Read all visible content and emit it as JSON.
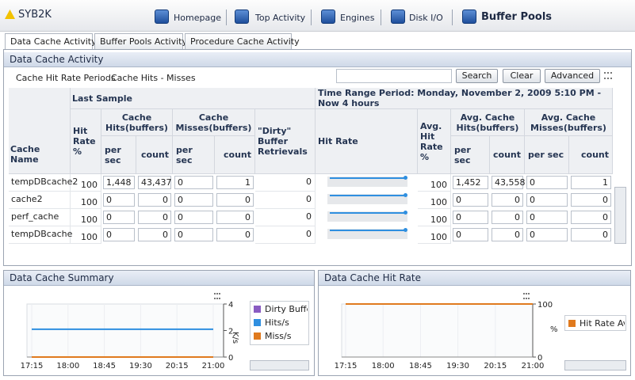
{
  "header": {
    "title": "SYB2K",
    "nav": [
      "Homepage",
      "Top Activity",
      "Engines",
      "Disk I/O",
      "Buffer Pools"
    ]
  },
  "tabs": [
    "Data Cache Activity",
    "Buffer Pools Activity",
    "Procedure Cache Activity"
  ],
  "panel": {
    "title": "Data Cache Activity",
    "links": [
      "Cache Hit Rate Periods",
      "Cache Hits - Misses"
    ],
    "buttons": [
      "Search",
      "Clear",
      "Advanced"
    ]
  },
  "table": {
    "group_headers": [
      "Last Sample",
      "Time Range Period: Monday, November 2, 2009  5:10 PM - Now  4 hours"
    ],
    "columns": [
      "Cache Name",
      "Hit Rate %",
      "Cache Hits(buffers)",
      "Cache Misses(buffers)",
      "\"Dirty\" Buffer Retrievals",
      "Hit Rate",
      "Avg. Hit Rate %",
      "Avg. Cache Hits(buffers)",
      "Avg. Cache Misses(buffers)"
    ],
    "subcolumns": [
      "per sec",
      "count"
    ],
    "rows": [
      [
        "tempDBcache2",
        "100",
        "1,448",
        "43,437",
        "0",
        "1",
        "0",
        "100",
        "1,452",
        "43,558",
        "0",
        "1"
      ],
      [
        "cache2",
        "100",
        "0",
        "0",
        "0",
        "0",
        "0",
        "100",
        "0",
        "0",
        "0",
        "0"
      ],
      [
        "perf_cache",
        "100",
        "0",
        "0",
        "0",
        "0",
        "0",
        "100",
        "0",
        "0",
        "0",
        "0"
      ],
      [
        "tempDBcache",
        "100",
        "0",
        "0",
        "0",
        "0",
        "0",
        "100",
        "0",
        "0",
        "0",
        "0"
      ]
    ]
  },
  "charts": [
    {
      "type": "line",
      "title": "Data Cache Summary",
      "y_label": "K/s",
      "x": [
        "17:15",
        "18:00",
        "18:45",
        "19:30",
        "20:15",
        "21:00"
      ],
      "ylim": [
        0,
        4
      ],
      "yticks": [
        0,
        2,
        4
      ],
      "series": [
        {
          "name": "Dirty Buffer",
          "color": "#8a5cc2",
          "values": [
            0,
            0,
            0,
            0,
            0,
            0
          ]
        },
        {
          "name": "Hits/s",
          "color": "#2f8fe0",
          "values": [
            2.1,
            2.1,
            2.1,
            2.1,
            2.1,
            2.1
          ]
        },
        {
          "name": "Miss/s",
          "color": "#e07a1e",
          "values": [
            0,
            0,
            0,
            0,
            0,
            0
          ]
        }
      ]
    },
    {
      "type": "line",
      "title": "Data Cache Hit Rate",
      "y_label": "%",
      "x": [
        "17:15",
        "18:00",
        "18:45",
        "19:30",
        "20:15",
        "21:00"
      ],
      "ylim": [
        0,
        100
      ],
      "yticks": [
        0,
        100
      ],
      "series": [
        {
          "name": "Hit Rate Ave",
          "color": "#e07a1e",
          "values": [
            100,
            100,
            100,
            100,
            100,
            100
          ]
        }
      ]
    }
  ]
}
